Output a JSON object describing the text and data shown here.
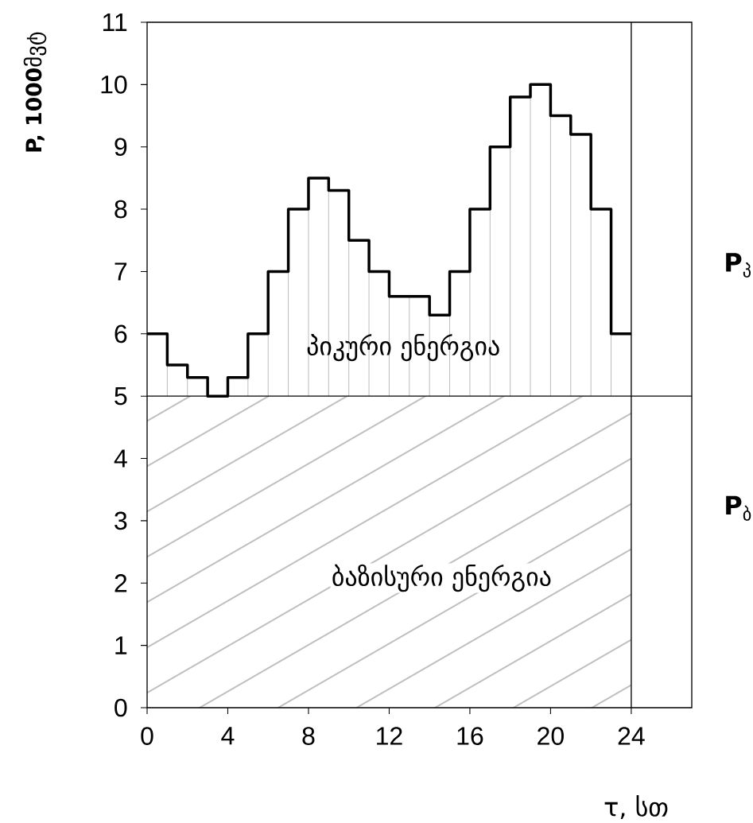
{
  "chart_data": {
    "type": "step",
    "xlabel": "τ, სთ",
    "ylabel": "**P, 1000**მვტ",
    "x": [
      0,
      1,
      2,
      3,
      4,
      5,
      6,
      7,
      8,
      9,
      10,
      11,
      12,
      13,
      14,
      15,
      16,
      17,
      18,
      19,
      20,
      21,
      22,
      23,
      24
    ],
    "values": [
      6,
      5.5,
      5.3,
      5,
      5.3,
      6,
      7,
      8,
      8.5,
      8.3,
      7.5,
      7,
      6.6,
      6.6,
      6.3,
      7,
      8,
      9,
      9.8,
      10,
      9.5,
      9.2,
      8,
      6,
      6
    ],
    "color": "#000000",
    "xlim": [
      0,
      27
    ],
    "xticks": [
      0,
      4,
      8,
      12,
      16,
      20,
      24
    ],
    "ylim": [
      0,
      11
    ],
    "yticks": [
      0,
      1,
      2,
      3,
      4,
      5,
      6,
      7,
      8,
      9,
      10,
      11
    ],
    "ref_lines": [
      {
        "axis": "y",
        "value": 5
      },
      {
        "axis": "x",
        "value": 24
      }
    ],
    "bands": [
      {
        "axis": "y",
        "from": 0,
        "to": 5,
        "label": "ბაზისური ენერგია",
        "color": "#000000"
      }
    ],
    "annotations": [
      "პიკური ენერგია",
      "**P**$_{პ}$",
      "**P**$_{ბ}$"
    ],
    "grid": false,
    "marker": "none",
    "line_style": "solid"
  }
}
